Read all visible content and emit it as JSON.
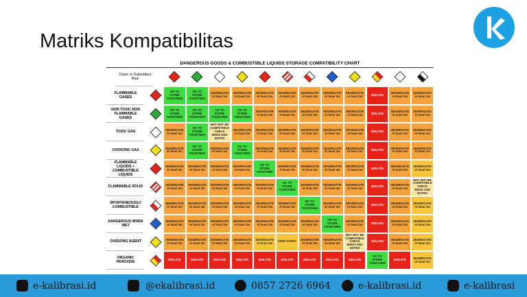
{
  "header": {
    "title": "Matriks Kompatibilitas"
  },
  "table": {
    "title": "DANGEROUS GOODS & COMBUSTIBLE LIQUIDS STORAGE COMPATIBILITY CHART",
    "corner": "Class or Subsidiary Risk",
    "rows": [
      {
        "label": "FLAMMABLE GASES",
        "cells": [
          [
            "OK TO STORE TOGETHER",
            "#3fdc3f"
          ],
          [
            "OK TO STORE TOGETHER",
            "#3fdc3f"
          ],
          [
            "SEGREGATE At least 3m",
            "#f7a23b"
          ],
          [
            "SEGREGATE At least 3m",
            "#f7a23b"
          ],
          [
            "SEGREGATE At least 3m",
            "#f7a23b"
          ],
          [
            "SEGREGATE At least 3m",
            "#f7a23b"
          ],
          [
            "SEGREGATE At least 3m",
            "#f7a23b"
          ],
          [
            "SEGREGATE At least 3m",
            "#f7a23b"
          ],
          [
            "SEGREGATE At least 3m",
            "#f7a23b"
          ],
          [
            "ISOLATE",
            "#e8231c"
          ],
          [
            "SEGREGATE At least 3m",
            "#f7a23b"
          ],
          [
            "SEGREGATE At least 3m",
            "#f7a23b"
          ]
        ]
      },
      {
        "label": "NON TOXIC NON FLAMMABLE GASES",
        "cells": [
          [
            "OK TO STORE TOGETHER",
            "#3fdc3f"
          ],
          [
            "OK TO STORE TOGETHER",
            "#3fdc3f"
          ],
          [
            "OK TO STORE TOGETHER",
            "#3fdc3f"
          ],
          [
            "OK TO STORE TOGETHER",
            "#3fdc3f"
          ],
          [
            "SEGREGATE At least 3m",
            "#f7a23b"
          ],
          [
            "SEGREGATE At least 3m",
            "#f7a23b"
          ],
          [
            "SEGREGATE At least 3m",
            "#f7a23b"
          ],
          [
            "SEGREGATE At least 3m",
            "#f7a23b"
          ],
          [
            "SEGREGATE At least 3m",
            "#f7a23b"
          ],
          [
            "ISOLATE",
            "#e8231c"
          ],
          [
            "SEGREGATE At least 3m",
            "#f7a23b"
          ],
          [
            "SEGREGATE At least 3m",
            "#f7a23b"
          ]
        ]
      },
      {
        "label": "TOXIC GAS",
        "cells": [
          [
            "SEGREGATE At least 3m",
            "#f7a23b"
          ],
          [
            "OK TO STORE TOGETHER",
            "#3fdc3f"
          ],
          [
            "MAY NOT BE COMPATIBLE CHECK MSDS AND NOTES",
            "#fde7a0"
          ],
          [
            "SEGREGATE At least 3m",
            "#f7a23b"
          ],
          [
            "SEGREGATE At least 3m",
            "#f7a23b"
          ],
          [
            "SEGREGATE At least 3m",
            "#f7a23b"
          ],
          [
            "SEGREGATE At least 3m",
            "#f7a23b"
          ],
          [
            "SEGREGATE At least 3m",
            "#f7a23b"
          ],
          [
            "SEGREGATE At least 3m",
            "#f7a23b"
          ],
          [
            "ISOLATE",
            "#e8231c"
          ],
          [
            "SEGREGATE At least 3m",
            "#f7a23b"
          ],
          [
            "SEGREGATE At least 3m",
            "#f7a23b"
          ]
        ]
      },
      {
        "label": "OXIDIZING GAS",
        "cells": [
          [
            "SEGREGATE At least 3m",
            "#f7a23b"
          ],
          [
            "OK TO STORE TOGETHER",
            "#3fdc3f"
          ],
          [
            "SEGREGATE At least 3m",
            "#f7a23b"
          ],
          [
            "OK TO STORE TOGETHER",
            "#3fdc3f"
          ],
          [
            "SEGREGATE At least 3m",
            "#f7a23b"
          ],
          [
            "SEGREGATE At least 3m",
            "#f7a23b"
          ],
          [
            "SEGREGATE At least 3m",
            "#f7a23b"
          ],
          [
            "SEGREGATE At least 3m",
            "#f7a23b"
          ],
          [
            "SEGREGATE At least 3m",
            "#f7a23b"
          ],
          [
            "ISOLATE",
            "#e8231c"
          ],
          [
            "SEGREGATE At least 3m",
            "#f7a23b"
          ],
          [
            "SEGREGATE At least 3m",
            "#f7a23b"
          ]
        ]
      },
      {
        "label": "FLAMMABLE LIQUIDS + COMBUSTIBLE LIQUIDS",
        "cells": [
          [
            "SEGREGATE At least 3m",
            "#f7a23b"
          ],
          [
            "SEGREGATE At least 3m",
            "#f7a23b"
          ],
          [
            "SEGREGATE At least 3m",
            "#f7a23b"
          ],
          [
            "SEGREGATE At least 3m",
            "#f7a23b"
          ],
          [
            "OK TO STORE TOGETHER",
            "#3fdc3f"
          ],
          [
            "SEGREGATE At least 3m",
            "#f7a23b"
          ],
          [
            "SEGREGATE At least 3m",
            "#f7a23b"
          ],
          [
            "SEGREGATE At least 3m",
            "#f7a23b"
          ],
          [
            "SEGREGATE At least 3m",
            "#f7a23b"
          ],
          [
            "ISOLATE",
            "#e8231c"
          ],
          [
            "SEGREGATE At least 3m",
            "#f7a23b"
          ],
          [
            "SEGREGATE At least 3m",
            "#f9c53a"
          ]
        ]
      },
      {
        "label": "FLAMMABLE SOLID",
        "cells": [
          [
            "SEGREGATE At least 3m",
            "#f7a23b"
          ],
          [
            "SEGREGATE At least 3m",
            "#f7a23b"
          ],
          [
            "SEGREGATE At least 3m",
            "#f7a23b"
          ],
          [
            "SEGREGATE At least 3m",
            "#f7a23b"
          ],
          [
            "SEGREGATE At least 3m",
            "#f7a23b"
          ],
          [
            "OK TO STORE TOGETHER",
            "#3fdc3f"
          ],
          [
            "SEGREGATE At least 3m",
            "#f7a23b"
          ],
          [
            "SEGREGATE At least 3m",
            "#f7a23b"
          ],
          [
            "SEGREGATE At least 3m",
            "#f7a23b"
          ],
          [
            "ISOLATE",
            "#e8231c"
          ],
          [
            "SEGREGATE At least 3m",
            "#f7a23b"
          ],
          [
            "MAY NOT BE COMPATIBLE CHECK MSDS AND NOTES",
            "#fde7a0"
          ]
        ]
      },
      {
        "label": "SPONTANEOUSLY COMBUSTIBLE",
        "cells": [
          [
            "SEGREGATE At least 3m",
            "#f7a23b"
          ],
          [
            "SEGREGATE At least 3m",
            "#f7a23b"
          ],
          [
            "SEGREGATE At least 3m",
            "#f7a23b"
          ],
          [
            "SEGREGATE At least 3m",
            "#f7a23b"
          ],
          [
            "SEGREGATE At least 3m",
            "#f7a23b"
          ],
          [
            "SEGREGATE At least 3m",
            "#f7a23b"
          ],
          [
            "OK TO STORE TOGETHER",
            "#3fdc3f"
          ],
          [
            "SEGREGATE At least 3m",
            "#f7a23b"
          ],
          [
            "SEGREGATE At least 3m",
            "#f7a23b"
          ],
          [
            "ISOLATE",
            "#e8231c"
          ],
          [
            "SEGREGATE At least 3m",
            "#f7a23b"
          ],
          [
            "SEGREGATE At least 3m",
            "#f9c53a"
          ]
        ]
      },
      {
        "label": "DANGEROUS WHEN WET",
        "cells": [
          [
            "SEGREGATE At least 3m",
            "#f7a23b"
          ],
          [
            "SEGREGATE At least 3m",
            "#f7a23b"
          ],
          [
            "SEGREGATE At least 3m",
            "#f7a23b"
          ],
          [
            "SEGREGATE At least 3m",
            "#f7a23b"
          ],
          [
            "SEGREGATE At least 3m",
            "#f7a23b"
          ],
          [
            "SEGREGATE At least 3m",
            "#f7a23b"
          ],
          [
            "SEGREGATE At least 3m",
            "#f7a23b"
          ],
          [
            "OK TO STORE TOGETHER",
            "#3fdc3f"
          ],
          [
            "SEGREGATE At least 3m",
            "#f7a23b"
          ],
          [
            "ISOLATE",
            "#e8231c"
          ],
          [
            "SEGREGATE At least 3m",
            "#f7a23b"
          ],
          [
            "SEGREGATE At least 3m",
            "#f9c53a"
          ]
        ]
      },
      {
        "label": "OXIDIZING AGENT",
        "cells": [
          [
            "SEGREGATE At least 3m",
            "#f7a23b"
          ],
          [
            "SEGREGATE At least 3m",
            "#f7a23b"
          ],
          [
            "SEGREGATE At least 3m",
            "#f7a23b"
          ],
          [
            "SEGREGATE At least 3m",
            "#f7a23b"
          ],
          [
            "SEGREGATE At least 3m",
            "#f9c53a"
          ],
          [
            "KEEP APART",
            "#f9c53a"
          ],
          [
            "SEGREGATE At least 3m",
            "#f7a23b"
          ],
          [
            "SEGREGATE At least 3m",
            "#f7a23b"
          ],
          [
            "MAY NOT BE COMPATIBLE CHECK MSDS AND NOTES",
            "#fde7a0"
          ],
          [
            "ISOLATE",
            "#e8231c"
          ],
          [
            "SEGREGATE At least 3m",
            "#f7a23b"
          ],
          [
            "SEGREGATE At least 3m",
            "#f9c53a"
          ]
        ]
      },
      {
        "label": "ORGANIC PEROXIDE",
        "cells": [
          [
            "ISOLATE",
            "#e8231c"
          ],
          [
            "ISOLATE",
            "#e8231c"
          ],
          [
            "ISOLATE",
            "#e8231c"
          ],
          [
            "ISOLATE",
            "#e8231c"
          ],
          [
            "ISOLATE",
            "#e8231c"
          ],
          [
            "ISOLATE",
            "#e8231c"
          ],
          [
            "ISOLATE",
            "#e8231c"
          ],
          [
            "ISOLATE",
            "#e8231c"
          ],
          [
            "ISOLATE",
            "#e8231c"
          ],
          [
            "OK TO STORE TOGETHER",
            "#3fdc3f"
          ],
          [
            "ISOLATE",
            "#e8231c"
          ],
          [
            "SEGREGATE At least 3m",
            "#f9c53a"
          ]
        ]
      }
    ]
  },
  "footer": {
    "items": [
      "e-kalibrasi.id",
      "@ekalibrasi.id",
      "0857 2726 6964",
      "e-kalibrasi.id",
      "e-kalibrasi"
    ]
  }
}
